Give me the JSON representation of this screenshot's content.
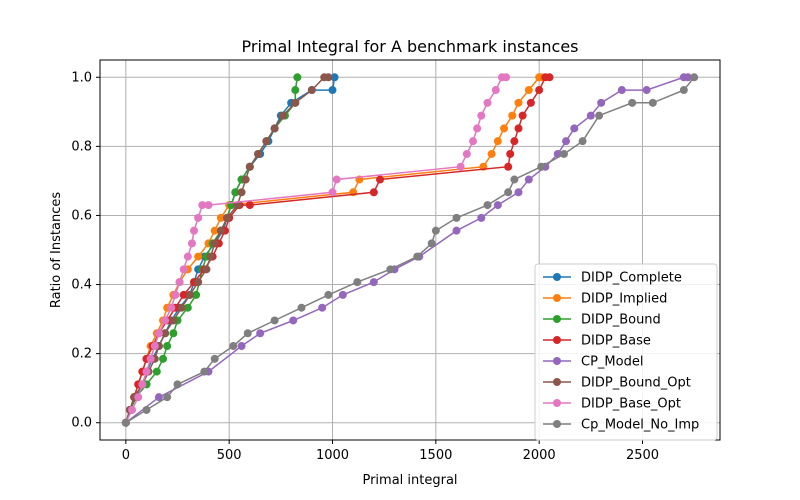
{
  "chart_data": {
    "type": "line",
    "title": "Primal Integral for A benchmark instances",
    "xlabel": "Primal integral",
    "ylabel": "Ratio of Instances",
    "xlim": [
      -125,
      2875
    ],
    "ylim": [
      -0.05,
      1.05
    ],
    "xticks": [
      0,
      500,
      1000,
      1500,
      2000,
      2500
    ],
    "yticks": [
      0.0,
      0.2,
      0.4,
      0.6,
      0.8,
      1.0
    ],
    "xtick_labels": [
      "0",
      "500",
      "1000",
      "1500",
      "2000",
      "2500"
    ],
    "ytick_labels": [
      "0.0",
      "0.2",
      "0.4",
      "0.6",
      "0.8",
      "1.0"
    ],
    "grid": true,
    "legend_position": "lower-right",
    "series": [
      {
        "name": "DIDP_Complete",
        "color": "#1f77b4",
        "x": [
          0,
          20,
          50,
          80,
          100,
          130,
          160,
          190,
          220,
          260,
          310,
          330,
          350,
          380,
          430,
          470,
          490,
          510,
          530,
          560,
          600,
          650,
          690,
          720,
          750,
          800,
          900,
          1000,
          1010
        ],
        "y": [
          0.0,
          0.037,
          0.074,
          0.111,
          0.148,
          0.185,
          0.222,
          0.259,
          0.296,
          0.333,
          0.37,
          0.407,
          0.444,
          0.481,
          0.519,
          0.556,
          0.593,
          0.63,
          0.667,
          0.704,
          0.741,
          0.778,
          0.815,
          0.852,
          0.889,
          0.926,
          0.963,
          0.963,
          1.0
        ]
      },
      {
        "name": "DIDP_Implied",
        "color": "#ff7f0e",
        "x": [
          0,
          20,
          40,
          60,
          80,
          100,
          120,
          150,
          180,
          200,
          230,
          260,
          300,
          350,
          400,
          430,
          460,
          500,
          1100,
          1130,
          1730,
          1770,
          1800,
          1830,
          1870,
          1900,
          1950,
          2000,
          2010
        ],
        "y": [
          0.0,
          0.037,
          0.074,
          0.111,
          0.148,
          0.185,
          0.222,
          0.259,
          0.296,
          0.333,
          0.37,
          0.407,
          0.444,
          0.481,
          0.519,
          0.556,
          0.593,
          0.63,
          0.667,
          0.704,
          0.741,
          0.778,
          0.815,
          0.852,
          0.889,
          0.926,
          0.963,
          1.0,
          1.0
        ]
      },
      {
        "name": "DIDP_Bound",
        "color": "#2ca02c",
        "x": [
          0,
          20,
          50,
          100,
          150,
          180,
          200,
          230,
          250,
          300,
          340,
          370,
          390,
          420,
          460,
          490,
          510,
          530,
          560,
          600,
          640,
          680,
          720,
          770,
          820,
          820,
          830
        ],
        "y": [
          0.0,
          0.037,
          0.074,
          0.111,
          0.148,
          0.185,
          0.222,
          0.259,
          0.296,
          0.333,
          0.37,
          0.444,
          0.481,
          0.519,
          0.556,
          0.593,
          0.63,
          0.667,
          0.704,
          0.741,
          0.778,
          0.815,
          0.852,
          0.889,
          0.926,
          0.963,
          1.0
        ]
      },
      {
        "name": "DIDP_Base",
        "color": "#d62728",
        "x": [
          0,
          20,
          40,
          60,
          80,
          100,
          130,
          160,
          200,
          240,
          280,
          330,
          380,
          420,
          450,
          480,
          500,
          550,
          600,
          1200,
          1230,
          1850,
          1860,
          1880,
          1900,
          1920,
          1960,
          2000,
          2030,
          2050
        ],
        "y": [
          0.0,
          0.037,
          0.074,
          0.111,
          0.148,
          0.185,
          0.222,
          0.259,
          0.296,
          0.333,
          0.37,
          0.407,
          0.444,
          0.481,
          0.519,
          0.556,
          0.593,
          0.63,
          0.63,
          0.667,
          0.704,
          0.741,
          0.778,
          0.815,
          0.852,
          0.889,
          0.926,
          0.963,
          1.0,
          1.0
        ]
      },
      {
        "name": "CP_Model",
        "color": "#9467bd",
        "x": [
          0,
          160,
          400,
          560,
          650,
          810,
          950,
          1050,
          1200,
          1300,
          1420,
          1600,
          1720,
          1800,
          1900,
          1950,
          2030,
          2090,
          2130,
          2170,
          2250,
          2300,
          2400,
          2520,
          2700,
          2720
        ],
        "y": [
          0.0,
          0.074,
          0.148,
          0.222,
          0.259,
          0.296,
          0.333,
          0.37,
          0.407,
          0.444,
          0.481,
          0.556,
          0.593,
          0.63,
          0.667,
          0.704,
          0.741,
          0.778,
          0.815,
          0.852,
          0.889,
          0.926,
          0.963,
          0.963,
          1.0,
          1.0
        ]
      },
      {
        "name": "DIDP_Bound_Opt",
        "color": "#8c564b",
        "x": [
          0,
          20,
          40,
          80,
          110,
          140,
          160,
          190,
          230,
          270,
          310,
          350,
          390,
          410,
          430,
          460,
          490,
          540,
          560,
          580,
          600,
          640,
          680,
          720,
          760,
          820,
          900,
          960,
          980
        ],
        "y": [
          0.0,
          0.037,
          0.074,
          0.111,
          0.148,
          0.185,
          0.222,
          0.259,
          0.296,
          0.333,
          0.37,
          0.407,
          0.444,
          0.481,
          0.519,
          0.556,
          0.593,
          0.63,
          0.667,
          0.704,
          0.741,
          0.778,
          0.815,
          0.852,
          0.889,
          0.926,
          0.963,
          1.0,
          1.0
        ]
      },
      {
        "name": "DIDP_Base_Opt",
        "color": "#e377c2",
        "x": [
          0,
          30,
          60,
          80,
          100,
          120,
          140,
          160,
          190,
          220,
          240,
          260,
          280,
          300,
          320,
          330,
          350,
          370,
          400,
          1000,
          1020,
          1620,
          1650,
          1680,
          1700,
          1720,
          1750,
          1790,
          1820,
          1840
        ],
        "y": [
          0.0,
          0.037,
          0.074,
          0.111,
          0.148,
          0.185,
          0.222,
          0.259,
          0.296,
          0.333,
          0.37,
          0.407,
          0.444,
          0.481,
          0.519,
          0.556,
          0.593,
          0.63,
          0.63,
          0.667,
          0.704,
          0.741,
          0.778,
          0.815,
          0.852,
          0.889,
          0.926,
          0.963,
          1.0,
          1.0
        ]
      },
      {
        "name": "Cp_Model_No_Imp",
        "color": "#7f7f7f",
        "x": [
          0,
          100,
          200,
          250,
          380,
          430,
          520,
          590,
          720,
          850,
          980,
          1120,
          1280,
          1410,
          1480,
          1500,
          1600,
          1750,
          1850,
          1880,
          2010,
          2120,
          2210,
          2290,
          2450,
          2550,
          2700,
          2750
        ],
        "y": [
          0.0,
          0.037,
          0.074,
          0.111,
          0.148,
          0.185,
          0.222,
          0.259,
          0.296,
          0.333,
          0.37,
          0.407,
          0.444,
          0.481,
          0.519,
          0.556,
          0.593,
          0.63,
          0.667,
          0.704,
          0.741,
          0.778,
          0.815,
          0.889,
          0.926,
          0.926,
          0.963,
          1.0
        ]
      }
    ]
  }
}
